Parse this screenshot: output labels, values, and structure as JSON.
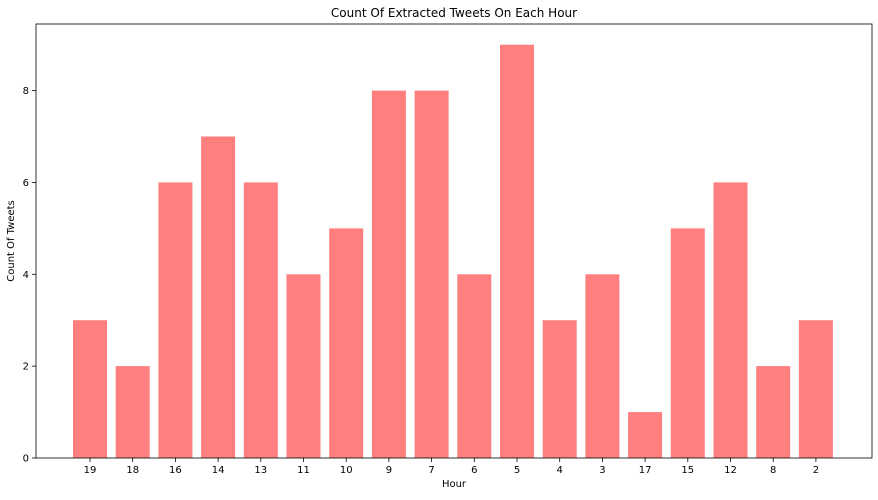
{
  "chart_data": {
    "type": "bar",
    "title": "Count Of Extracted Tweets On Each Hour",
    "xlabel": "Hour",
    "ylabel": "Count Of Tweets",
    "categories": [
      "19",
      "18",
      "16",
      "14",
      "13",
      "11",
      "10",
      "9",
      "7",
      "6",
      "5",
      "4",
      "3",
      "17",
      "15",
      "12",
      "8",
      "2"
    ],
    "values": [
      3,
      2,
      6,
      7,
      6,
      4,
      5,
      8,
      8,
      4,
      9,
      3,
      4,
      1,
      5,
      6,
      2,
      3
    ],
    "ylim": [
      0,
      9.45
    ],
    "yticks": [
      0,
      2,
      4,
      6,
      8
    ],
    "grid": false,
    "bar_color": "#ff7f7f"
  }
}
